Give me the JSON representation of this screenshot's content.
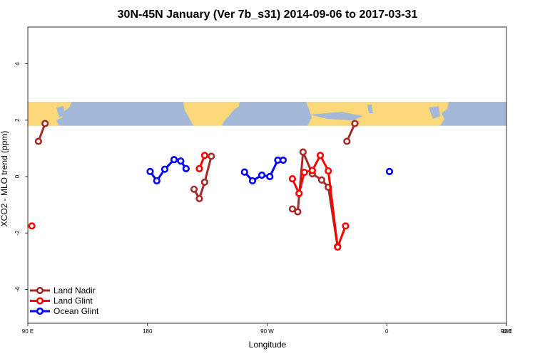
{
  "chart_data": {
    "type": "line",
    "title": "30N-45N January (Ver 7b_s31)   2014-09-06 to 2017-03-31",
    "xlabel": "Longitude",
    "ylabel": "XCO2 - MLO trend (ppm)",
    "xlim": [
      90,
      450
    ],
    "ylim": [
      -5.2,
      5.3
    ],
    "x_ticks": [
      {
        "value": 90,
        "label": "90 E"
      },
      {
        "value": 180,
        "label": "180"
      },
      {
        "value": 270,
        "label": "90 W"
      },
      {
        "value": 360,
        "label": "0"
      },
      {
        "value": 450,
        "label": "90 E"
      },
      {
        "value": 540,
        "label": "180"
      }
    ],
    "y_ticks": [
      {
        "value": -4,
        "label": "-4"
      },
      {
        "value": -2,
        "label": "-2"
      },
      {
        "value": 0,
        "label": "0"
      },
      {
        "value": 2,
        "label": "2"
      },
      {
        "value": 4,
        "label": "4"
      }
    ],
    "map_band": {
      "y_from": 1.8,
      "y_to": 2.65,
      "ocean_color": "#a4b8d8",
      "land_color": "#fbd87a"
    },
    "legend_position": "bottom-left",
    "series": [
      {
        "name": "Land Nadir",
        "color": "#a52a2a",
        "segments": [
          [
            [
              98,
              1.25
            ],
            [
              103,
              1.88
            ]
          ],
          [
            [
              215,
              -0.45
            ],
            [
              219,
              -0.78
            ],
            [
              223,
              -0.2
            ],
            [
              228,
              0.72
            ]
          ],
          [
            [
              289,
              -1.15
            ],
            [
              293,
              -1.25
            ],
            [
              297,
              0.87
            ],
            [
              304,
              0.1
            ],
            [
              311,
              -0.12
            ],
            [
              316,
              -0.38
            ],
            [
              323,
              -2.48
            ]
          ],
          [
            [
              330,
              1.25
            ],
            [
              336,
              1.88
            ]
          ]
        ]
      },
      {
        "name": "Land Glint",
        "color": "#ff0000",
        "segments": [
          [
            [
              93,
              -1.75
            ]
          ],
          [
            [
              219,
              0.28
            ],
            [
              223,
              0.75
            ]
          ],
          [
            [
              289,
              -0.08
            ],
            [
              294,
              -0.6
            ],
            [
              298,
              0.15
            ],
            [
              304,
              0.22
            ],
            [
              310,
              0.75
            ],
            [
              316,
              0.2
            ],
            [
              323,
              -2.5
            ],
            [
              329,
              -1.75
            ]
          ]
        ]
      },
      {
        "name": "Ocean Glint",
        "color": "#0000ff",
        "segments": [
          [
            [
              182,
              0.18
            ],
            [
              187,
              -0.15
            ],
            [
              193,
              0.26
            ],
            [
              200,
              0.6
            ],
            [
              205,
              0.55
            ],
            [
              209,
              0.28
            ]
          ],
          [
            [
              253,
              0.16
            ],
            [
              259,
              -0.15
            ],
            [
              266,
              0.05
            ],
            [
              272,
              0.0
            ],
            [
              278,
              0.58
            ],
            [
              282,
              0.58
            ]
          ],
          [
            [
              362,
              0.18
            ]
          ]
        ]
      }
    ]
  }
}
